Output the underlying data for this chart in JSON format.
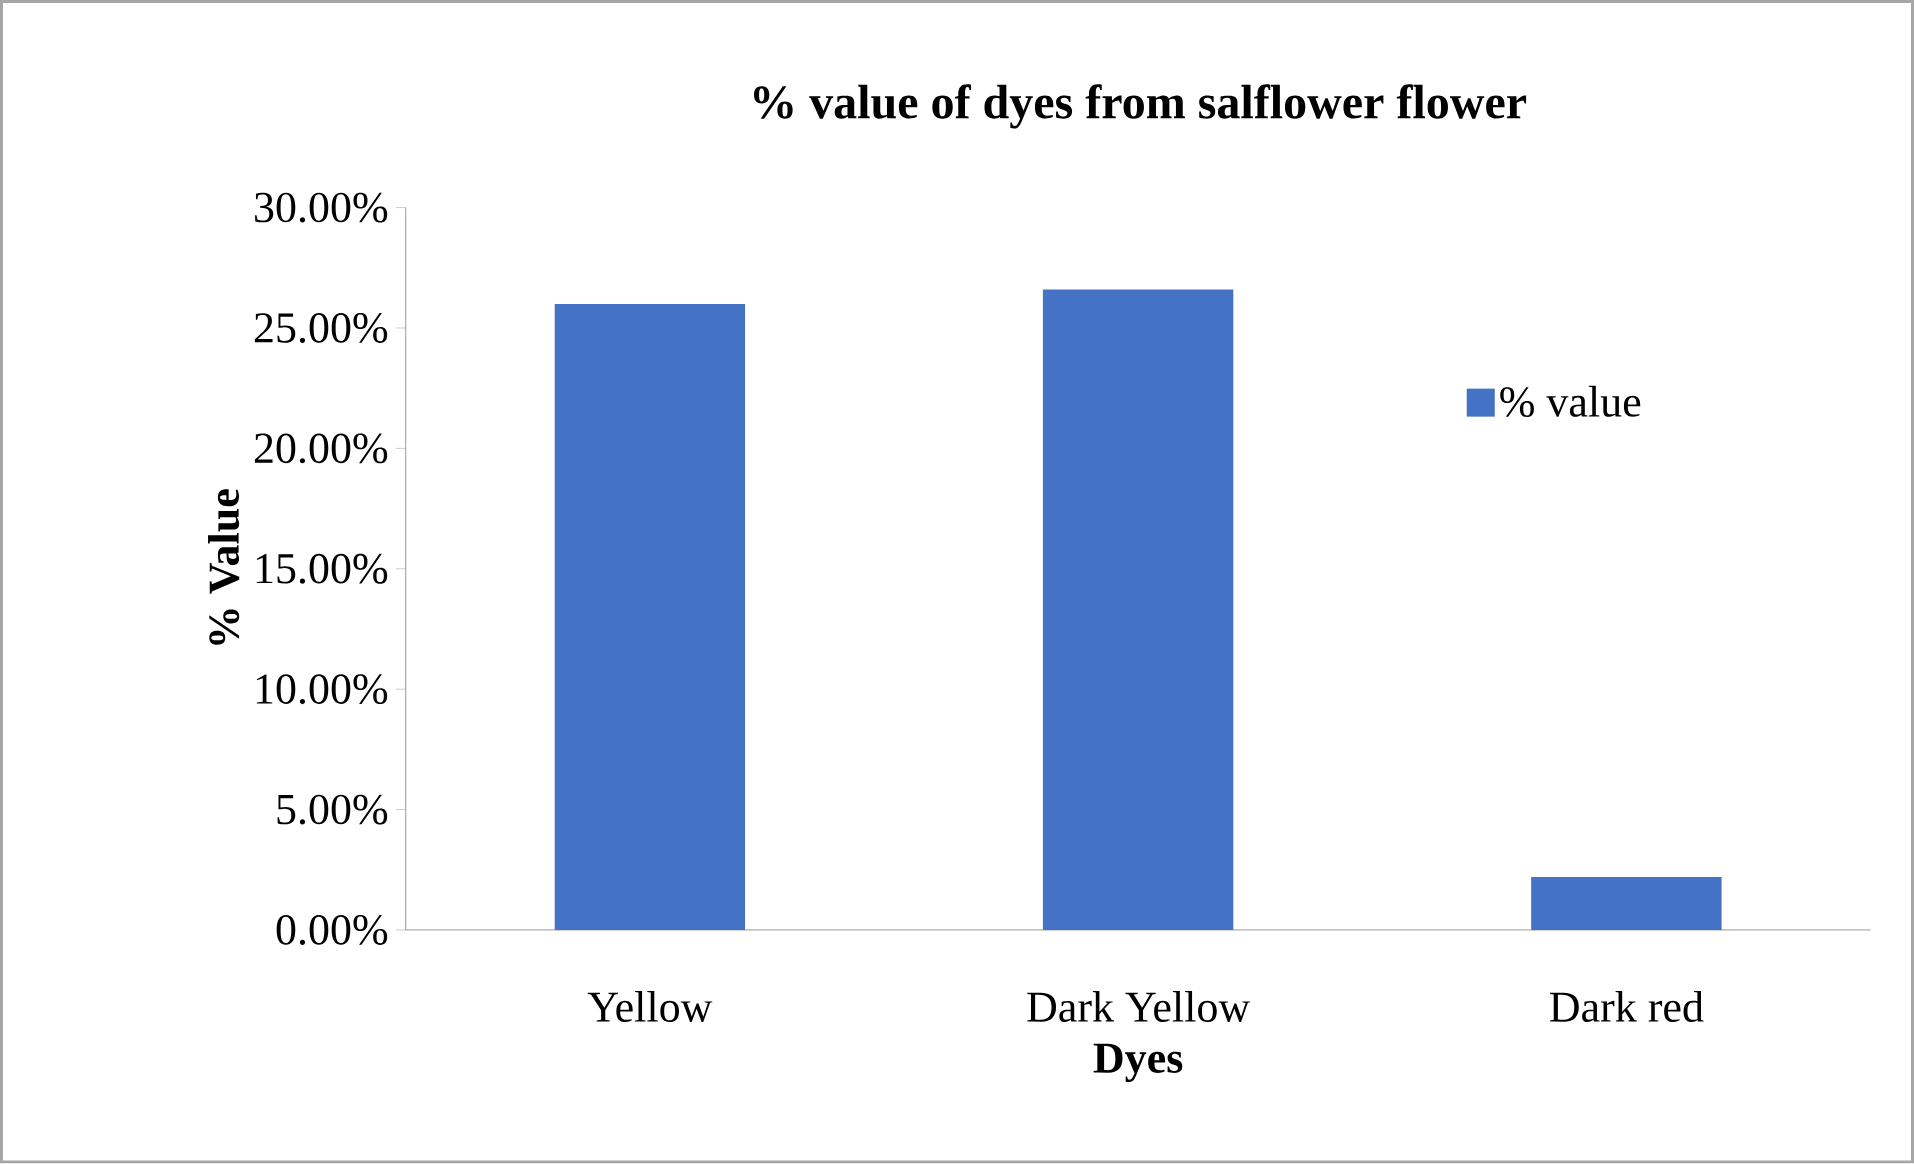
{
  "chart_data": {
    "type": "bar",
    "title": "% value of dyes from salflower flower",
    "xlabel": "Dyes",
    "ylabel": "% Value",
    "categories": [
      "Yellow",
      "Dark Yellow",
      "Dark red"
    ],
    "series": [
      {
        "name": "% value",
        "color": "#4472c4",
        "values": [
          26.0,
          26.6,
          2.2
        ]
      }
    ],
    "ylim": [
      0,
      30
    ],
    "yticks": [
      {
        "value": 0,
        "label": "0.00%"
      },
      {
        "value": 5,
        "label": "5.00%"
      },
      {
        "value": 10,
        "label": "10.00%"
      },
      {
        "value": 15,
        "label": "15.00%"
      },
      {
        "value": 20,
        "label": "20.00%"
      },
      {
        "value": 25,
        "label": "25.00%"
      },
      {
        "value": 30,
        "label": "30.00%"
      }
    ],
    "grid": false,
    "legend": "right"
  }
}
